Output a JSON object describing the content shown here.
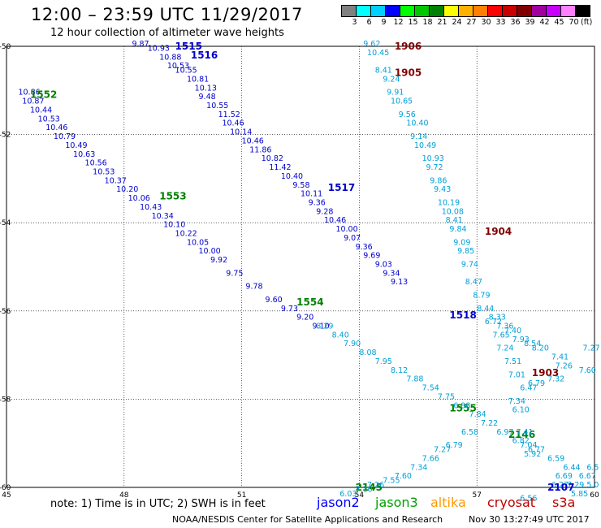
{
  "header": {
    "title": "12:00 – 23:59 UTC 11/29/2017",
    "subtitle": "12 hour collection of altimeter wave heights"
  },
  "colorbar": {
    "colors": [
      "#808080",
      "#00ffff",
      "#00d0ff",
      "#0000ff",
      "#00ff00",
      "#00c800",
      "#008000",
      "#ffff00",
      "#ffb000",
      "#ff8000",
      "#ff0000",
      "#c80000",
      "#800000",
      "#a000a0",
      "#c800ff",
      "#ff80ff",
      "#000000"
    ],
    "labels": [
      "3",
      "6",
      "9",
      "12",
      "15",
      "18",
      "21",
      "24",
      "27",
      "30",
      "33",
      "36",
      "39",
      "42",
      "45",
      "70"
    ],
    "unit": "(ft)"
  },
  "map": {
    "lon_range": [
      45,
      60
    ],
    "lat_range": [
      -60,
      -50
    ],
    "x_ticks": [
      "45",
      "48",
      "51",
      "54",
      "57",
      "60"
    ],
    "y_ticks": [
      "-50",
      "-52",
      "-54",
      "-56",
      "-58",
      "-60"
    ]
  },
  "chart_data": {
    "type": "scatter",
    "units": "ft",
    "tracks": [
      {
        "mission": "jason2",
        "color": "#0000cc",
        "labels": [
          {
            "text": "1515",
            "lon": 49.3,
            "lat": -50.0
          },
          {
            "text": "1516",
            "lon": 49.7,
            "lat": -50.2
          }
        ],
        "points": [
          [
            48.2,
            -50.0,
            9.87
          ],
          [
            48.6,
            -50.1,
            10.93
          ],
          [
            48.9,
            -50.3,
            10.88
          ],
          [
            49.1,
            -50.5,
            10.53
          ],
          [
            49.3,
            -50.6,
            10.55
          ],
          [
            49.6,
            -50.8,
            10.81
          ],
          [
            49.8,
            -51.0,
            10.13
          ],
          [
            49.9,
            -51.2,
            9.48
          ],
          [
            50.1,
            -51.4,
            10.55
          ],
          [
            50.4,
            -51.6,
            11.52
          ],
          [
            50.5,
            -51.8,
            10.46
          ],
          [
            50.7,
            -52.0,
            10.14
          ],
          [
            51.0,
            -52.2,
            10.46
          ],
          [
            51.2,
            -52.4,
            11.86
          ],
          [
            51.5,
            -52.6,
            10.82
          ],
          [
            51.7,
            -52.8,
            11.42
          ],
          [
            52.0,
            -53.0,
            10.4
          ],
          [
            52.3,
            -53.2,
            9.58
          ],
          [
            52.5,
            -53.4,
            10.11
          ],
          [
            52.7,
            -53.6,
            9.36
          ],
          [
            52.9,
            -53.8,
            9.28
          ],
          [
            53.1,
            -54.0,
            10.46
          ],
          [
            53.4,
            -54.2,
            10.0
          ],
          [
            53.6,
            -54.4,
            9.07
          ],
          [
            53.9,
            -54.6,
            9.36
          ],
          [
            54.1,
            -54.8,
            9.69
          ],
          [
            54.4,
            -55.0,
            9.03
          ],
          [
            54.6,
            -55.2,
            9.34
          ],
          [
            54.8,
            -55.4,
            9.13
          ]
        ]
      },
      {
        "mission": "jason2",
        "color": "#0000cc",
        "labels": [
          {
            "text": "1517",
            "lon": 53.2,
            "lat": -53.2
          },
          {
            "text": "1518",
            "lon": 56.3,
            "lat": -56.1
          }
        ],
        "points": [
          [
            45.3,
            -51.1,
            10.86
          ],
          [
            45.4,
            -51.3,
            10.87
          ],
          [
            45.6,
            -51.5,
            10.44
          ],
          [
            45.8,
            -51.7,
            10.53
          ],
          [
            46.0,
            -51.9,
            10.46
          ],
          [
            46.2,
            -52.1,
            10.79
          ],
          [
            46.5,
            -52.3,
            10.49
          ],
          [
            46.7,
            -52.5,
            10.63
          ],
          [
            47.0,
            -52.7,
            10.56
          ],
          [
            47.2,
            -52.9,
            10.53
          ],
          [
            47.5,
            -53.1,
            10.37
          ],
          [
            47.8,
            -53.3,
            10.2
          ],
          [
            48.1,
            -53.5,
            10.06
          ],
          [
            48.4,
            -53.7,
            10.43
          ],
          [
            48.7,
            -53.9,
            10.34
          ],
          [
            49.0,
            -54.1,
            10.1
          ],
          [
            49.3,
            -54.3,
            10.22
          ],
          [
            49.6,
            -54.5,
            10.05
          ],
          [
            49.9,
            -54.7,
            10.0
          ],
          [
            50.2,
            -54.9,
            9.92
          ],
          [
            50.6,
            -55.2,
            9.75
          ],
          [
            51.1,
            -55.5,
            9.78
          ],
          [
            51.6,
            -55.8,
            9.6
          ],
          [
            52.0,
            -56.0,
            9.73
          ],
          [
            52.4,
            -56.2,
            9.2
          ],
          [
            52.8,
            -56.4,
            9.1
          ]
        ]
      },
      {
        "mission": "jason3",
        "color": "#008000",
        "labels": [
          {
            "text": "1552",
            "lon": 45.6,
            "lat": -51.1
          },
          {
            "text": "1553",
            "lon": 48.9,
            "lat": -53.4
          },
          {
            "text": "1554",
            "lon": 52.4,
            "lat": -55.8
          },
          {
            "text": "1555",
            "lon": 56.3,
            "lat": -58.2
          },
          {
            "text": "2146",
            "lon": 57.8,
            "lat": -58.8
          },
          {
            "text": "2145",
            "lon": 53.9,
            "lat": -60.0
          }
        ],
        "points": []
      },
      {
        "mission": "cryosat s3a",
        "color": "#800000",
        "labels": [
          {
            "text": "1906",
            "lon": 54.9,
            "lat": -50.0
          },
          {
            "text": "1905",
            "lon": 54.9,
            "lat": -50.6
          },
          {
            "text": "1904",
            "lon": 57.2,
            "lat": -54.2
          },
          {
            "text": "1903",
            "lon": 58.4,
            "lat": -57.4
          }
        ],
        "points": []
      },
      {
        "mission": "jason2",
        "color": "#00a0d8",
        "labels": [
          {
            "text": "2107",
            "lon": 58.8,
            "lat": -60.0
          }
        ],
        "points": [
          [
            54.1,
            -50.0,
            9.62
          ],
          [
            54.2,
            -50.2,
            10.45
          ],
          [
            54.4,
            -50.6,
            8.41
          ],
          [
            54.6,
            -50.8,
            9.24
          ],
          [
            54.7,
            -51.1,
            9.91
          ],
          [
            54.8,
            -51.3,
            10.65
          ],
          [
            55.0,
            -51.6,
            9.56
          ],
          [
            55.2,
            -51.8,
            10.4
          ],
          [
            55.3,
            -52.1,
            9.14
          ],
          [
            55.4,
            -52.3,
            10.49
          ],
          [
            55.6,
            -52.6,
            10.93
          ],
          [
            55.7,
            -52.8,
            9.72
          ],
          [
            55.8,
            -53.1,
            9.86
          ],
          [
            55.9,
            -53.3,
            9.43
          ],
          [
            56.0,
            -53.6,
            10.19
          ],
          [
            56.1,
            -53.8,
            10.08
          ],
          [
            56.2,
            -54.0,
            8.41
          ],
          [
            56.3,
            -54.2,
            9.84
          ],
          [
            56.4,
            -54.5,
            9.09
          ],
          [
            56.5,
            -54.7,
            9.85
          ],
          [
            56.6,
            -55.0,
            9.74
          ],
          [
            56.7,
            -55.4,
            8.47
          ],
          [
            56.9,
            -55.7,
            8.79
          ],
          [
            57.0,
            -56.0,
            8.44
          ],
          [
            57.3,
            -56.2,
            8.33
          ],
          [
            57.2,
            -56.3,
            6.72
          ],
          [
            57.5,
            -56.4,
            7.36
          ],
          [
            57.7,
            -56.5,
            7.4
          ],
          [
            57.4,
            -56.6,
            7.65
          ],
          [
            57.9,
            -56.7,
            7.93
          ],
          [
            57.5,
            -56.9,
            7.24
          ],
          [
            58.2,
            -56.8,
            8.54
          ],
          [
            58.4,
            -56.9,
            8.2
          ],
          [
            57.7,
            -57.2,
            7.51
          ],
          [
            57.8,
            -57.5,
            7.01
          ],
          [
            58.9,
            -57.1,
            7.41
          ],
          [
            59.0,
            -57.3,
            7.26
          ],
          [
            58.8,
            -57.6,
            7.32
          ],
          [
            58.1,
            -57.8,
            6.47
          ],
          [
            58.3,
            -57.7,
            6.79
          ],
          [
            57.8,
            -58.1,
            7.34
          ],
          [
            57.9,
            -58.3,
            6.1
          ],
          [
            58.0,
            -58.8,
            7.41
          ],
          [
            58.1,
            -59.1,
            7.04
          ],
          [
            58.2,
            -59.3,
            5.92
          ],
          [
            59.0,
            -59.8,
            6.69
          ],
          [
            58.9,
            -60.0,
            6.27
          ],
          [
            59.3,
            -60.0,
            7.29
          ],
          [
            59.4,
            -60.2,
            5.85
          ],
          [
            56.6,
            -58.8,
            6.58
          ],
          [
            56.2,
            -59.1,
            6.79
          ],
          [
            55.9,
            -59.2,
            7.27
          ],
          [
            55.6,
            -59.4,
            7.66
          ],
          [
            55.3,
            -59.6,
            7.34
          ],
          [
            54.9,
            -59.8,
            7.6
          ],
          [
            54.6,
            -59.9,
            7.55
          ],
          [
            54.2,
            -60.0,
            7.26
          ],
          [
            53.9,
            -60.1,
            7.1
          ],
          [
            53.5,
            -60.2,
            6.03
          ]
        ]
      },
      {
        "mission": "jason2",
        "color": "#00a0d8",
        "labels": [],
        "points": [
          [
            52.9,
            -56.4,
            8.29
          ],
          [
            53.3,
            -56.6,
            8.4
          ],
          [
            53.6,
            -56.8,
            7.9
          ],
          [
            54.0,
            -57.0,
            8.08
          ],
          [
            54.4,
            -57.2,
            7.95
          ],
          [
            54.8,
            -57.4,
            8.12
          ],
          [
            55.2,
            -57.6,
            7.88
          ],
          [
            55.6,
            -57.8,
            7.54
          ],
          [
            56.0,
            -58.0,
            7.75
          ],
          [
            56.4,
            -58.2,
            6.88
          ],
          [
            56.8,
            -58.4,
            7.84
          ],
          [
            57.1,
            -58.6,
            7.22
          ],
          [
            57.5,
            -58.8,
            6.97
          ],
          [
            57.9,
            -59.0,
            6.82
          ],
          [
            58.3,
            -59.2,
            6.77
          ],
          [
            58.8,
            -59.4,
            6.59
          ],
          [
            59.2,
            -59.6,
            6.44
          ],
          [
            59.6,
            -59.8,
            6.67
          ]
        ]
      }
    ],
    "scattered_values": [
      {
        "text": "7.27",
        "lon": 59.7,
        "lat": -56.9
      },
      {
        "text": "7.60",
        "lon": 59.6,
        "lat": -57.4
      },
      {
        "text": "6.5",
        "lon": 59.8,
        "lat": -59.6
      },
      {
        "text": "5.0",
        "lon": 59.8,
        "lat": -60.0
      },
      {
        "text": "6.56",
        "lon": 58.1,
        "lat": -60.3
      }
    ]
  },
  "legend": {
    "note": "note: 1) Time is in UTC; 2) SWH is in feet",
    "missions": [
      {
        "name": "jason2",
        "color": "#0000ff"
      },
      {
        "name": "jason3",
        "color": "#00a000"
      },
      {
        "name": "altika",
        "color": "#ff9900"
      },
      {
        "name": "cryosat",
        "color": "#c00000"
      },
      {
        "name": "s3a",
        "color": "#c00000"
      }
    ]
  },
  "footer": {
    "credit": "NOAA/NESDIS Center for Satellite Applications and Research",
    "timestamp": "Nov 30 13:27:49 UTC 2017"
  }
}
